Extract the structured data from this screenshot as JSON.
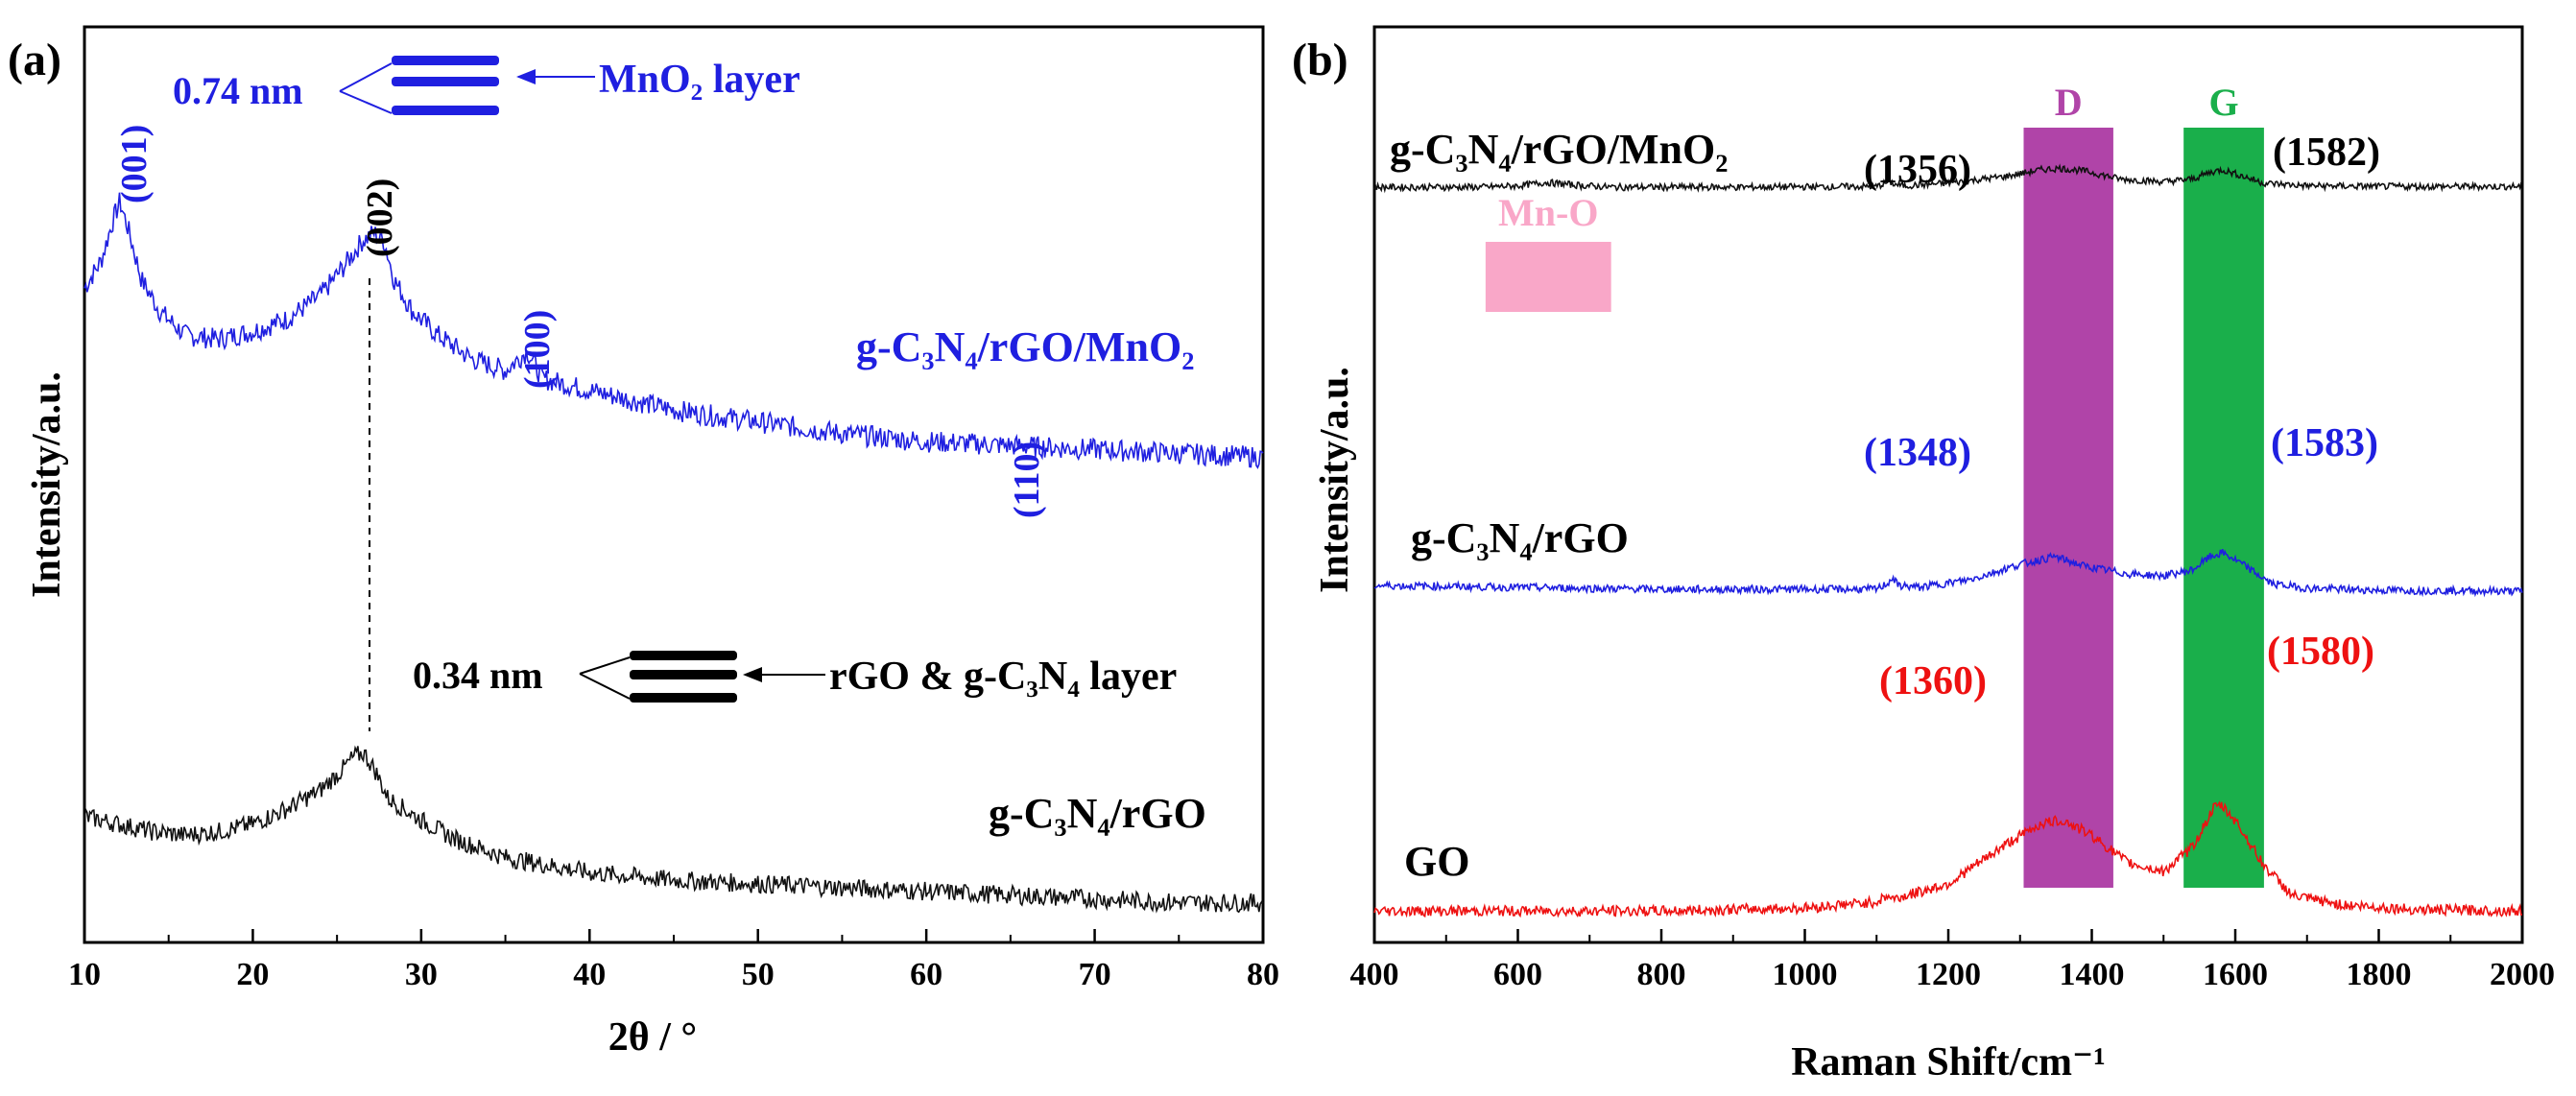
{
  "chart_data": [
    {
      "panel_label": "(a)",
      "type": "line",
      "xlabel": "2θ / °",
      "ylabel": "Intensity/a.u.",
      "xlim": [
        10,
        80
      ],
      "xticks": [
        "10",
        "20",
        "30",
        "40",
        "50",
        "60",
        "70",
        "80"
      ],
      "series": [
        {
          "name": "g-C3N4/rGO/MnO2",
          "color": "#1f1fe0",
          "x": [
            10,
            11,
            11.6,
            12.1,
            12.6,
            13.4,
            14.5,
            16,
            18,
            20,
            22,
            24,
            25.5,
            26.5,
            27.2,
            27.8,
            28.4,
            29.5,
            31,
            33,
            35,
            36.3,
            37.2,
            40,
            45,
            50,
            55,
            60,
            65,
            70,
            75,
            80
          ],
          "y": [
            0.78,
            0.85,
            0.94,
            1.0,
            0.93,
            0.8,
            0.72,
            0.66,
            0.65,
            0.67,
            0.7,
            0.76,
            0.84,
            0.9,
            0.92,
            0.9,
            0.8,
            0.72,
            0.66,
            0.6,
            0.57,
            0.62,
            0.55,
            0.52,
            0.47,
            0.44,
            0.41,
            0.39,
            0.38,
            0.37,
            0.36,
            0.35
          ]
        },
        {
          "name": "g-C3N4/rGO",
          "color": "#111111",
          "x": [
            10,
            12,
            14,
            16,
            18,
            20,
            22,
            24,
            25.2,
            26,
            26.6,
            27.3,
            28,
            30,
            32,
            35,
            40,
            45,
            50,
            55,
            60,
            65,
            70,
            75,
            80
          ],
          "y": [
            0.28,
            0.26,
            0.24,
            0.23,
            0.24,
            0.26,
            0.3,
            0.35,
            0.4,
            0.44,
            0.45,
            0.4,
            0.33,
            0.27,
            0.22,
            0.17,
            0.13,
            0.11,
            0.1,
            0.09,
            0.08,
            0.07,
            0.06,
            0.05,
            0.05
          ]
        }
      ],
      "annotations": {
        "peak_001": "(001)",
        "peak_002": "(002)",
        "peak_100": "(100)",
        "peak_110": "(110)",
        "mno2_spacing": "0.74 nm",
        "mno2_layer_label": "MnO₂ layer",
        "rgo_spacing": "0.34 nm",
        "rgo_layer_label": "rGO & g-C₃N₄ layer",
        "series_label_top": "g-C₃N₄/rGO/MnO₂",
        "series_label_bottom": "g-C₃N₄/rGO"
      }
    },
    {
      "panel_label": "(b)",
      "type": "line",
      "xlabel": "Raman Shift/cm⁻¹",
      "ylabel": "Intensity/a.u.",
      "xlim": [
        400,
        2000
      ],
      "xticks": [
        "400",
        "600",
        "800",
        "1000",
        "1200",
        "1400",
        "1600",
        "1800",
        "2000"
      ],
      "series": [
        {
          "name": "g-C3N4/rGO/MnO2",
          "color": "#111111",
          "x": [
            400,
            550,
            600,
            640,
            680,
            730,
            900,
            1100,
            1118,
            1125,
            1140,
            1200,
            1280,
            1330,
            1356,
            1390,
            1440,
            1500,
            1540,
            1565,
            1582,
            1600,
            1640,
            1700,
            1800,
            2000
          ],
          "y": [
            0.75,
            0.75,
            0.76,
            0.785,
            0.765,
            0.75,
            0.75,
            0.755,
            0.79,
            0.77,
            0.76,
            0.78,
            0.83,
            0.88,
            0.89,
            0.87,
            0.81,
            0.79,
            0.81,
            0.86,
            0.88,
            0.85,
            0.78,
            0.76,
            0.755,
            0.755
          ]
        },
        {
          "name": "g-C3N4/rGO",
          "color": "#1f1fe0",
          "x": [
            400,
            600,
            800,
            1000,
            1100,
            1115,
            1122,
            1130,
            1160,
            1230,
            1300,
            1348,
            1390,
            1450,
            1500,
            1540,
            1565,
            1583,
            1610,
            1650,
            1700,
            1800,
            2000
          ],
          "y": [
            0.45,
            0.44,
            0.43,
            0.43,
            0.43,
            0.46,
            0.49,
            0.45,
            0.44,
            0.48,
            0.56,
            0.6,
            0.55,
            0.51,
            0.5,
            0.53,
            0.6,
            0.62,
            0.56,
            0.46,
            0.435,
            0.425,
            0.42
          ]
        },
        {
          "name": "GO",
          "color": "#ee1111",
          "x": [
            400,
            600,
            800,
            1000,
            1100,
            1115,
            1125,
            1140,
            1200,
            1280,
            1330,
            1360,
            1400,
            1450,
            1500,
            1540,
            1570,
            1580,
            1600,
            1640,
            1680,
            1750,
            1850,
            2000
          ],
          "y": [
            0.05,
            0.05,
            0.05,
            0.06,
            0.08,
            0.1,
            0.09,
            0.1,
            0.14,
            0.27,
            0.34,
            0.35,
            0.3,
            0.21,
            0.18,
            0.26,
            0.39,
            0.4,
            0.35,
            0.2,
            0.1,
            0.07,
            0.055,
            0.05
          ]
        }
      ],
      "bands": [
        {
          "label": "D",
          "range": [
            1305,
            1430
          ],
          "color": "#b044a8"
        },
        {
          "label": "G",
          "range": [
            1528,
            1640
          ],
          "color": "#1aaf4b"
        },
        {
          "label": "Mn-O",
          "range": [
            555,
            730
          ],
          "color": "#f9a7c8"
        }
      ],
      "annotations": {
        "composite_label": "g-C₃N₄/rGO/MnO₂",
        "binary_label": "g-C₃N₄/rGO",
        "go_label": "GO",
        "composite_d": "(1356)",
        "composite_g": "(1582)",
        "binary_d": "(1348)",
        "binary_g": "(1583)",
        "go_d": "(1360)",
        "go_g": "(1580)"
      }
    }
  ]
}
